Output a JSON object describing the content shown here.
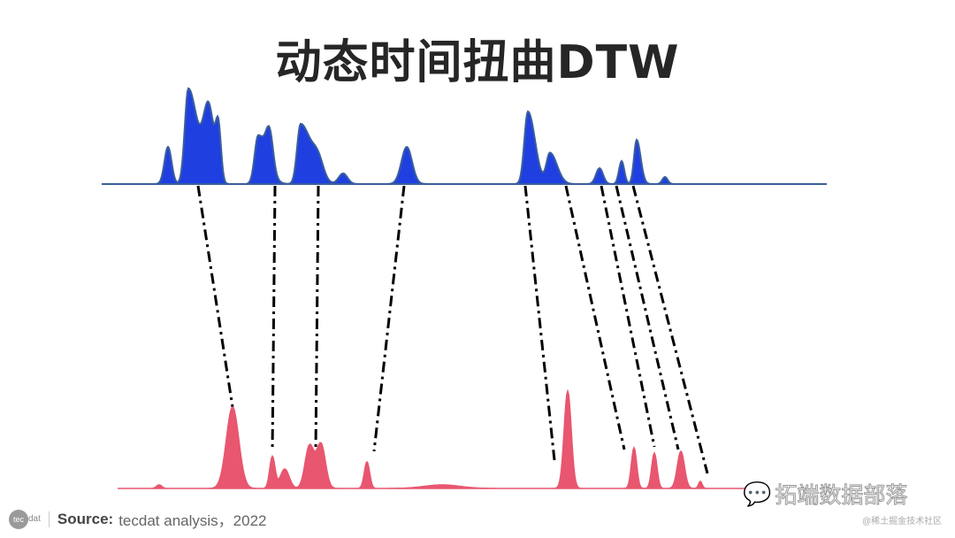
{
  "title": "动态时间扭曲DTW",
  "colors": {
    "top_series": "#1f3fe0",
    "top_stroke": "#3a5f9c",
    "bottom_series": "#e8566f",
    "connector": "#000000"
  },
  "footer": {
    "logo_text": "tec",
    "logo_suffix": "dat",
    "source_label": "Source:",
    "source_text": "tecdat analysis，2022"
  },
  "watermark": {
    "icon": "wechat-icon",
    "text": "拓端数据部落",
    "sub": "@稀土掘金技术社区"
  }
}
